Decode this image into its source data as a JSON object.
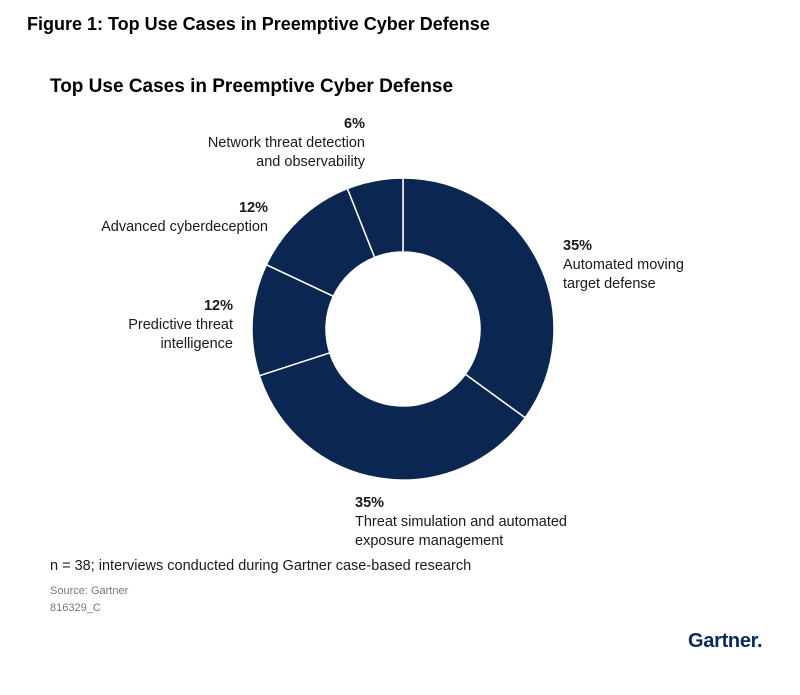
{
  "figure_title": "Figure 1: Top Use Cases in Preemptive Cyber Defense",
  "chart_data": {
    "type": "pie",
    "variant": "donut",
    "title": "Top Use Cases in Preemptive Cyber Defense",
    "slices": [
      {
        "label_lines": [
          "Automated moving",
          "target defense"
        ],
        "label": "Automated moving target defense",
        "value": 35,
        "display": "35%"
      },
      {
        "label_lines": [
          "Threat simulation and automated",
          "exposure management"
        ],
        "label": "Threat simulation and automated exposure management",
        "value": 35,
        "display": "35%"
      },
      {
        "label_lines": [
          "Predictive threat",
          "intelligence"
        ],
        "label": "Predictive threat intelligence",
        "value": 12,
        "display": "12%"
      },
      {
        "label_lines": [
          "Advanced cyberdeception"
        ],
        "label": "Advanced cyberdeception",
        "value": 12,
        "display": "12%"
      },
      {
        "label_lines": [
          "Network threat detection",
          "and observability"
        ],
        "label": "Network threat detection and observability",
        "value": 6,
        "display": "6%"
      }
    ],
    "color": "#0b2650"
  },
  "note": "n = 38; interviews conducted during Gartner case-based research",
  "source": "Source: Gartner",
  "code": "816329_C",
  "logo": "Gartner"
}
